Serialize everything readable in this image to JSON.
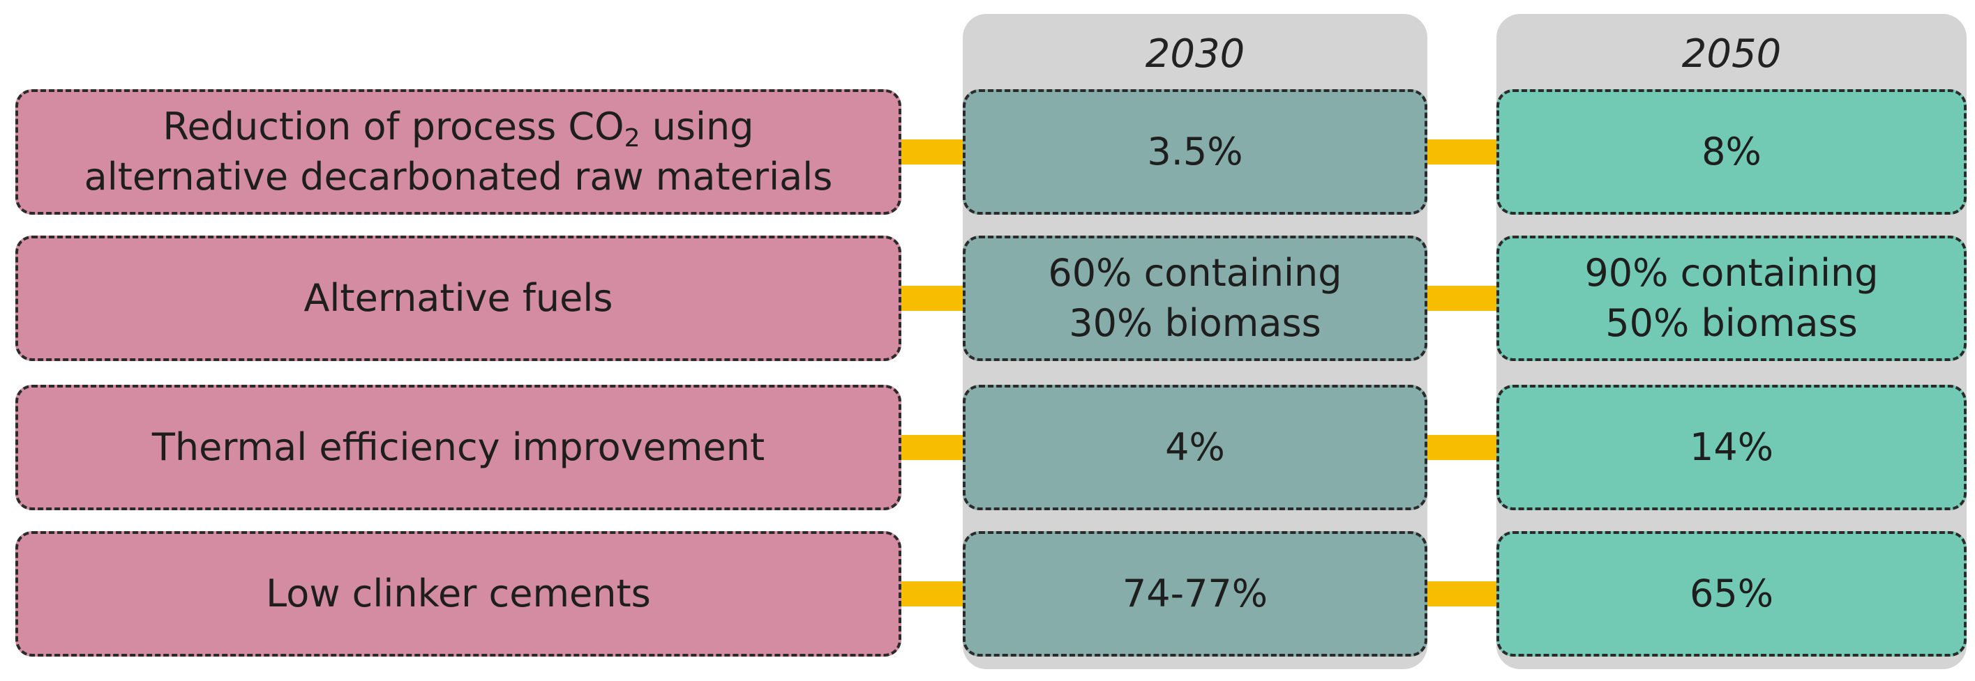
{
  "columns": [
    {
      "year": "2030"
    },
    {
      "year": "2050"
    }
  ],
  "rows": [
    {
      "label_line1_pre": "Reduction of process CO",
      "label_line1_sub": "2",
      "label_line1_post": " using",
      "label_line2": "alternative decarbonated raw materials",
      "v2030_line1": "3.5%",
      "v2030_line2": "",
      "v2050_line1": "8%",
      "v2050_line2": ""
    },
    {
      "label_line1": "Alternative fuels",
      "v2030_line1": "60% containing",
      "v2030_line2": "30% biomass",
      "v2050_line1": "90% containing",
      "v2050_line2": "50% biomass"
    },
    {
      "label_line1": "Thermal efficiency improvement",
      "v2030_line1": "4%",
      "v2030_line2": "",
      "v2050_line1": "14%",
      "v2050_line2": ""
    },
    {
      "label_line1": "Low clinker cements",
      "v2030_line1": "74-77%",
      "v2030_line2": "",
      "v2050_line1": "65%",
      "v2050_line2": ""
    }
  ],
  "colors": {
    "label_fill": "#d48ca3",
    "col2030_fill": "#86ada9",
    "col2050_fill": "#73cab4",
    "connector": "#f7bd00",
    "column_background": "#d4d4d4"
  }
}
